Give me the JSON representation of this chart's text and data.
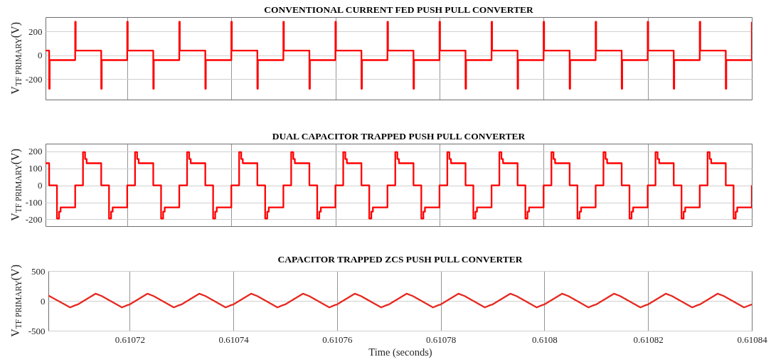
{
  "chart_data": [
    {
      "type": "step",
      "title": "CONVENTIONAL CURRENT FED PUSH PULL CONVERTER",
      "ylabel": "V$_{TF PRIMARY}$(V)",
      "color": "#ff0000",
      "xlim": [
        0.6107043,
        0.61084
      ],
      "ylim": [
        -370,
        320
      ],
      "xticks": [
        0.61072,
        0.61074,
        0.61076,
        0.61078,
        0.6108,
        0.61082,
        0.61084
      ],
      "yticks": [
        -200,
        0,
        200
      ],
      "grid": true,
      "tick_labels": "y",
      "x": [
        0.6107043,
        0.610705,
        0.6107051,
        0.61071,
        0.6107101,
        0.610715,
        0.6107151,
        0.61072,
        0.6107201,
        0.610725,
        0.6107251,
        0.61073,
        0.6107301,
        0.610735,
        0.6107351,
        0.61074,
        0.6107401,
        0.610745,
        0.6107451,
        0.61075,
        0.6107501,
        0.610755,
        0.6107551,
        0.61076,
        0.6107601,
        0.610765,
        0.6107651,
        0.61077,
        0.6107701,
        0.610775,
        0.6107751,
        0.61078,
        0.6107801,
        0.610785,
        0.6107851,
        0.61079,
        0.6107901,
        0.610795,
        0.6107951,
        0.6108,
        0.6108001,
        0.610805,
        0.6108051,
        0.61081,
        0.6108101,
        0.610815,
        0.6108151,
        0.61082,
        0.6108201,
        0.610825,
        0.6108251,
        0.61083,
        0.6108301,
        0.610835,
        0.6108351,
        0.61084
      ],
      "values": [
        40,
        -280,
        -40,
        280,
        40,
        -280,
        -40,
        280,
        40,
        -280,
        -40,
        280,
        40,
        -280,
        -40,
        280,
        40,
        -280,
        -40,
        280,
        40,
        -280,
        -40,
        280,
        40,
        -280,
        -40,
        280,
        40,
        -280,
        -40,
        280,
        40,
        -280,
        -40,
        280,
        40,
        -280,
        -40,
        280,
        40,
        -280,
        -40,
        280,
        40,
        -280,
        -40,
        280,
        40,
        -280,
        -40,
        280,
        40,
        -280,
        -40,
        280
      ]
    },
    {
      "type": "step",
      "title": "DUAL CAPACITOR TRAPPED PUSH PULL CONVERTER",
      "ylabel": "V$_{TF PRIMARY}$(V)",
      "color": "#ff0000",
      "xlim": [
        0.6107043,
        0.61084
      ],
      "ylim": [
        -240,
        245
      ],
      "xticks": [
        0.61072,
        0.61074,
        0.61076,
        0.61078,
        0.6108,
        0.61082,
        0.61084
      ],
      "yticks": [
        -200,
        -100,
        0,
        100,
        200
      ],
      "grid": true,
      "tick_labels": "y",
      "x": [
        0.6107043,
        0.610705,
        0.6107065,
        0.6107069,
        0.6107072,
        0.61071,
        0.6107115,
        0.6107119,
        0.6107122,
        0.610715,
        0.6107165,
        0.6107169,
        0.6107172,
        0.61072,
        0.6107215,
        0.6107219,
        0.6107222,
        0.610725,
        0.6107265,
        0.6107269,
        0.6107272,
        0.61073,
        0.6107315,
        0.6107319,
        0.6107322,
        0.610735,
        0.6107365,
        0.6107369,
        0.6107372,
        0.61074,
        0.6107415,
        0.6107419,
        0.6107422,
        0.610745,
        0.6107465,
        0.6107469,
        0.6107472,
        0.61075,
        0.6107515,
        0.6107519,
        0.6107522,
        0.610755,
        0.6107565,
        0.6107569,
        0.6107572,
        0.61076,
        0.6107615,
        0.6107619,
        0.6107622,
        0.610765,
        0.6107665,
        0.6107669,
        0.6107672,
        0.61077,
        0.6107715,
        0.6107719,
        0.6107722,
        0.610775,
        0.6107765,
        0.6107769,
        0.6107772,
        0.61078,
        0.6107815,
        0.6107819,
        0.6107822,
        0.610785,
        0.6107865,
        0.6107869,
        0.6107872,
        0.61079,
        0.6107915,
        0.6107919,
        0.6107922,
        0.610795,
        0.6107965,
        0.6107969,
        0.6107972,
        0.6108,
        0.6108015,
        0.6108019,
        0.6108022,
        0.610805,
        0.6108065,
        0.6108069,
        0.6108072,
        0.61081,
        0.6108115,
        0.6108119,
        0.6108122,
        0.610815,
        0.6108165,
        0.6108169,
        0.6108172,
        0.61082,
        0.6108215,
        0.6108219,
        0.6108222,
        0.610825,
        0.6108265,
        0.6108269,
        0.6108272,
        0.61083,
        0.6108315,
        0.6108319,
        0.6108322,
        0.610835,
        0.6108365,
        0.6108369,
        0.6108372,
        0.61084
      ],
      "values": [
        130,
        0,
        -195,
        -155,
        -130,
        0,
        195,
        155,
        130,
        0,
        -195,
        -155,
        -130,
        0,
        195,
        155,
        130,
        0,
        -195,
        -155,
        -130,
        0,
        195,
        155,
        130,
        0,
        -195,
        -155,
        -130,
        0,
        195,
        155,
        130,
        0,
        -195,
        -155,
        -130,
        0,
        195,
        155,
        130,
        0,
        -195,
        -155,
        -130,
        0,
        195,
        155,
        130,
        0,
        -195,
        -155,
        -130,
        0,
        195,
        155,
        130,
        0,
        -195,
        -155,
        -130,
        0,
        195,
        155,
        130,
        0,
        -195,
        -155,
        -130,
        0,
        195,
        155,
        130,
        0,
        -195,
        -155,
        -130,
        0,
        195,
        155,
        130,
        0,
        -195,
        -155,
        -130,
        0,
        195,
        155,
        130,
        0,
        -195,
        -155,
        -130,
        0,
        195,
        155,
        130,
        0,
        -195,
        -155,
        -130,
        0,
        195,
        155,
        130,
        0,
        -195,
        -155,
        -130,
        0
      ]
    },
    {
      "type": "line",
      "title": "CAPACITOR TRAPPED ZCS PUSH PULL CONVERTER",
      "xlabel": "Time (seconds)",
      "ylabel": "V$_{TF PRIMARY}$(V)",
      "color": "#e62820",
      "xlim": [
        0.6107043,
        0.61084
      ],
      "ylim": [
        -500,
        500
      ],
      "xticks": [
        0.61072,
        0.61074,
        0.61076,
        0.61078,
        0.6108,
        0.61082,
        0.61084
      ],
      "yticks": [
        -500,
        0,
        500
      ],
      "grid": true,
      "x": [
        0.6107043,
        0.6107085,
        0.6107096,
        0.61071,
        0.6107134,
        0.6107146,
        0.6107185,
        0.6107196,
        0.61072,
        0.6107234,
        0.6107246,
        0.6107285,
        0.6107296,
        0.61073,
        0.6107334,
        0.6107346,
        0.6107385,
        0.6107396,
        0.61074,
        0.6107434,
        0.6107446,
        0.6107485,
        0.6107496,
        0.61075,
        0.6107534,
        0.6107546,
        0.6107585,
        0.6107596,
        0.61076,
        0.6107634,
        0.6107646,
        0.6107685,
        0.6107696,
        0.61077,
        0.6107734,
        0.6107746,
        0.6107785,
        0.6107796,
        0.61078,
        0.6107834,
        0.6107846,
        0.6107885,
        0.6107896,
        0.61079,
        0.6107934,
        0.6107946,
        0.6107985,
        0.6107996,
        0.6108,
        0.6108034,
        0.6108046,
        0.6108085,
        0.6108096,
        0.61081,
        0.6108134,
        0.6108146,
        0.6108185,
        0.6108196,
        0.61082,
        0.6108234,
        0.6108246,
        0.6108285,
        0.6108296,
        0.61083,
        0.6108334,
        0.6108346,
        0.6108385,
        0.61084
      ],
      "values": [
        90,
        -110,
        -70,
        -60,
        120,
        80,
        -110,
        -70,
        -60,
        120,
        80,
        -110,
        -70,
        -60,
        120,
        80,
        -110,
        -70,
        -60,
        120,
        80,
        -110,
        -70,
        -60,
        120,
        80,
        -110,
        -70,
        -60,
        120,
        80,
        -110,
        -70,
        -60,
        120,
        80,
        -110,
        -70,
        -60,
        120,
        80,
        -110,
        -70,
        -60,
        120,
        80,
        -110,
        -70,
        -60,
        120,
        80,
        -110,
        -70,
        -60,
        120,
        80,
        -110,
        -70,
        -60,
        120,
        80,
        -110,
        -70,
        -60,
        120,
        80,
        -110,
        -60
      ]
    }
  ]
}
